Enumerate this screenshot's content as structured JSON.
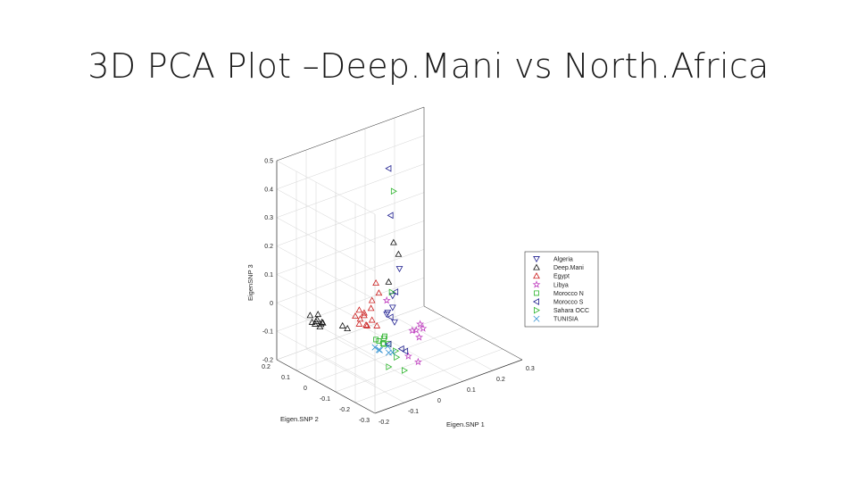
{
  "slide": {
    "title": "3D PCA Plot –Deep.Mani vs North.Africa"
  },
  "chart_data": {
    "type": "scatter",
    "projection": "3d",
    "title": "",
    "xlabel": "Eigen.SNP 1",
    "ylabel": "Eigen.SNP 2",
    "zlabel": "EigenSNP 3",
    "xlim": [
      -0.2,
      0.3
    ],
    "ylim": [
      -0.3,
      0.2
    ],
    "zlim": [
      -0.2,
      0.5
    ],
    "x_ticks": [
      "-0.2",
      "-0.1",
      "0",
      "0.1",
      "0.2",
      "0.3"
    ],
    "y_ticks": [
      "-0.3",
      "-0.2",
      "-0.1",
      "0",
      "0.1",
      "0.2"
    ],
    "z_ticks": [
      "-0.2",
      "-0.1",
      "0",
      "0.1",
      "0.2",
      "0.3",
      "0.4",
      "0.5"
    ],
    "grid": true,
    "legend": "right",
    "series": [
      {
        "name": "Algeria",
        "marker": "triangle-down",
        "color": "#1f1f8f",
        "points": [
          [
            0.05,
            -0.05,
            0.12
          ],
          [
            0.02,
            -0.06,
            0.04
          ],
          [
            -0.01,
            -0.08,
            0.0
          ],
          [
            0.04,
            -0.03,
            -0.02
          ],
          [
            0.0,
            -0.1,
            -0.03
          ],
          [
            -0.04,
            -0.12,
            0.02
          ]
        ]
      },
      {
        "name": "Deep.Mani",
        "marker": "triangle-up",
        "color": "#111111",
        "points": [
          [
            -0.2,
            0.02,
            0.0
          ],
          [
            -0.19,
            0.01,
            0.01
          ],
          [
            -0.19,
            0.02,
            -0.01
          ],
          [
            -0.18,
            0.0,
            0.0
          ],
          [
            -0.2,
            0.0,
            0.01
          ],
          [
            -0.18,
            0.02,
            0.02
          ],
          [
            -0.17,
            0.01,
            -0.01
          ],
          [
            -0.19,
            -0.01,
            0.0
          ],
          [
            -0.18,
            0.01,
            -0.02
          ],
          [
            -0.2,
            0.03,
            0.02
          ],
          [
            -0.13,
            -0.03,
            -0.02
          ],
          [
            -0.12,
            -0.04,
            -0.03
          ],
          [
            0.03,
            -0.05,
            0.22
          ],
          [
            0.06,
            -0.03,
            0.16
          ],
          [
            0.0,
            -0.07,
            0.1
          ]
        ]
      },
      {
        "name": "Egypt",
        "marker": "triangle-up",
        "color": "#cc1f1f",
        "points": [
          [
            -0.1,
            -0.07,
            -0.01
          ],
          [
            -0.09,
            -0.06,
            0.0
          ],
          [
            -0.08,
            -0.08,
            -0.02
          ],
          [
            -0.07,
            -0.05,
            0.01
          ],
          [
            -0.09,
            -0.09,
            -0.01
          ],
          [
            -0.06,
            -0.07,
            0.03
          ],
          [
            -0.08,
            -0.04,
            0.02
          ],
          [
            -0.1,
            -0.05,
            0.01
          ],
          [
            -0.07,
            -0.09,
            0.0
          ],
          [
            -0.05,
            -0.06,
            0.05
          ],
          [
            -0.04,
            -0.08,
            0.08
          ],
          [
            -0.06,
            -0.1,
            -0.02
          ],
          [
            -0.03,
            -0.05,
            0.1
          ],
          [
            -0.09,
            -0.08,
            0.02
          ]
        ]
      },
      {
        "name": "Libya",
        "marker": "star",
        "color": "#c040c0",
        "points": [
          [
            0.1,
            -0.04,
            -0.12
          ],
          [
            0.12,
            -0.03,
            -0.13
          ],
          [
            0.13,
            -0.05,
            -0.12
          ],
          [
            0.14,
            -0.02,
            -0.12
          ],
          [
            0.11,
            -0.06,
            -0.14
          ],
          [
            0.06,
            -0.08,
            -0.18
          ],
          [
            0.08,
            -0.1,
            -0.2
          ],
          [
            -0.02,
            -0.09,
            0.05
          ]
        ]
      },
      {
        "name": "Morocco N",
        "marker": "square",
        "color": "#2db52d",
        "points": [
          [
            -0.05,
            -0.08,
            -0.08
          ],
          [
            -0.04,
            -0.1,
            -0.09
          ],
          [
            -0.06,
            -0.11,
            -0.07
          ],
          [
            -0.03,
            -0.09,
            -0.1
          ],
          [
            -0.05,
            -0.12,
            -0.06
          ],
          [
            -0.02,
            -0.08,
            -0.08
          ],
          [
            -0.04,
            -0.13,
            -0.08
          ]
        ]
      },
      {
        "name": "Morocco S",
        "marker": "triangle-left",
        "color": "#1f1f8f",
        "points": [
          [
            0.02,
            -0.04,
            0.48
          ],
          [
            0.04,
            -0.02,
            0.3
          ],
          [
            0.03,
            -0.06,
            0.05
          ],
          [
            0.0,
            -0.08,
            -0.02
          ],
          [
            -0.02,
            -0.1,
            -0.1
          ],
          [
            0.01,
            -0.12,
            -0.12
          ],
          [
            0.03,
            -0.11,
            -0.14
          ]
        ]
      },
      {
        "name": "Sahara OCC",
        "marker": "triangle-right",
        "color": "#2db52d",
        "points": [
          [
            0.03,
            -0.05,
            0.4
          ],
          [
            0.01,
            -0.07,
            0.06
          ],
          [
            0.0,
            -0.11,
            -0.15
          ],
          [
            0.02,
            -0.12,
            -0.2
          ],
          [
            -0.02,
            -0.1,
            -0.18
          ],
          [
            -0.01,
            -0.12,
            -0.12
          ]
        ]
      },
      {
        "name": "TUNISIA",
        "marker": "x",
        "color": "#2f8fd0",
        "points": [
          [
            -0.06,
            -0.09,
            -0.1
          ],
          [
            -0.05,
            -0.1,
            -0.11
          ],
          [
            -0.03,
            -0.11,
            -0.1
          ],
          [
            -0.04,
            -0.08,
            -0.12
          ],
          [
            -0.02,
            -0.1,
            -0.13
          ],
          [
            0.0,
            -0.09,
            -0.14
          ]
        ]
      }
    ]
  }
}
